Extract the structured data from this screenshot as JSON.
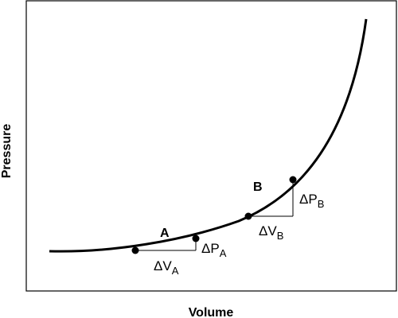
{
  "axes": {
    "x_title": "Volume",
    "y_title": "Pressure"
  },
  "points": {
    "a": {
      "label": "A"
    },
    "b": {
      "label": "B"
    }
  },
  "deltas": {
    "dv_a": {
      "symbol": "ΔV",
      "sub": "A"
    },
    "dp_a": {
      "symbol": "ΔP",
      "sub": "A"
    },
    "dv_b": {
      "symbol": "ΔV",
      "sub": "B"
    },
    "dp_b": {
      "symbol": "ΔP",
      "sub": "B"
    }
  },
  "colors": {
    "ink": "#000000",
    "background": "#ffffff"
  }
}
